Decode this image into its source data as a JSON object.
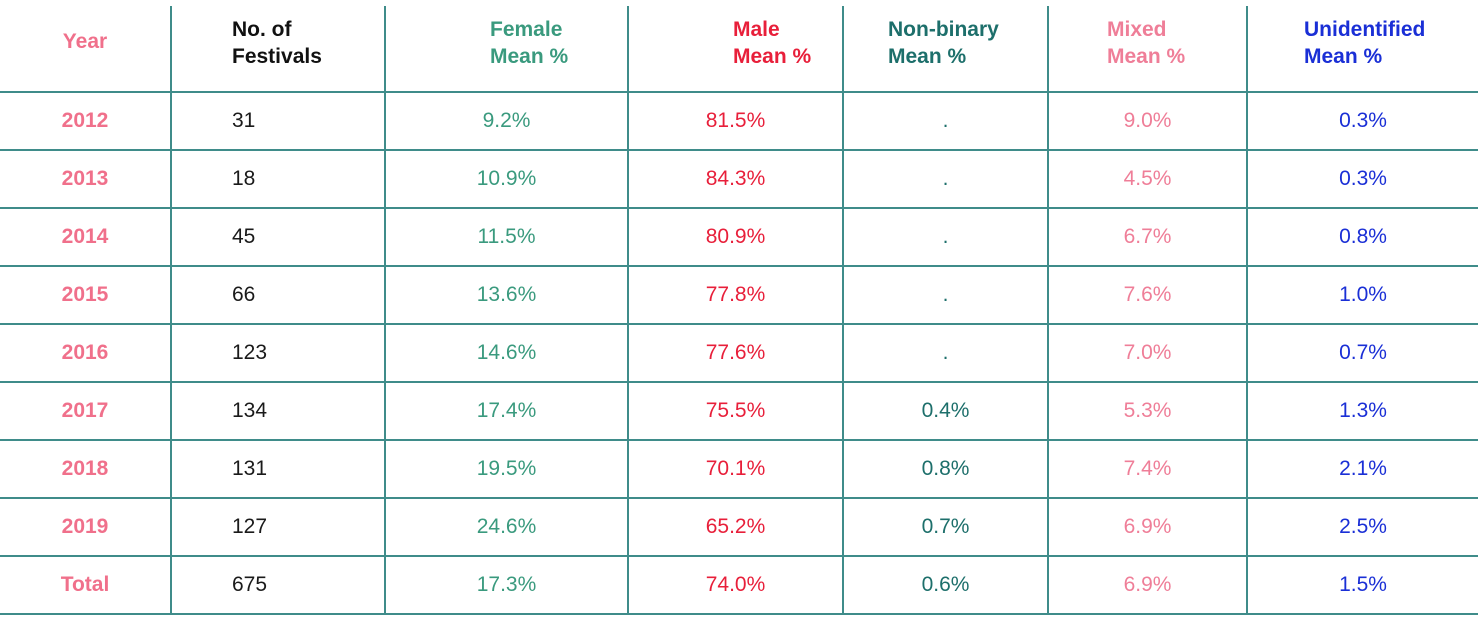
{
  "header": {
    "year": "Year",
    "festivals": [
      "No. of",
      "Festivals"
    ],
    "female": [
      "Female",
      "Mean %"
    ],
    "male": [
      "Male",
      "Mean %"
    ],
    "nonbinary": [
      "Non-binary",
      "Mean %"
    ],
    "mixed": [
      "Mixed",
      "Mean %"
    ],
    "unidentified": [
      "Unidentified",
      "Mean %"
    ]
  },
  "rows": [
    {
      "year": "2012",
      "festivals": "31",
      "female": "9.2%",
      "male": "81.5%",
      "nonbinary": ".",
      "mixed": "9.0%",
      "unidentified": "0.3%"
    },
    {
      "year": "2013",
      "festivals": "18",
      "female": "10.9%",
      "male": "84.3%",
      "nonbinary": ".",
      "mixed": "4.5%",
      "unidentified": "0.3%"
    },
    {
      "year": "2014",
      "festivals": "45",
      "female": "11.5%",
      "male": "80.9%",
      "nonbinary": ".",
      "mixed": "6.7%",
      "unidentified": "0.8%"
    },
    {
      "year": "2015",
      "festivals": "66",
      "female": "13.6%",
      "male": "77.8%",
      "nonbinary": ".",
      "mixed": "7.6%",
      "unidentified": "1.0%"
    },
    {
      "year": "2016",
      "festivals": "123",
      "female": "14.6%",
      "male": "77.6%",
      "nonbinary": ".",
      "mixed": "7.0%",
      "unidentified": "0.7%"
    },
    {
      "year": "2017",
      "festivals": "134",
      "female": "17.4%",
      "male": "75.5%",
      "nonbinary": "0.4%",
      "mixed": "5.3%",
      "unidentified": "1.3%"
    },
    {
      "year": "2018",
      "festivals": "131",
      "female": "19.5%",
      "male": "70.1%",
      "nonbinary": "0.8%",
      "mixed": "7.4%",
      "unidentified": "2.1%"
    },
    {
      "year": "2019",
      "festivals": "127",
      "female": "24.6%",
      "male": "65.2%",
      "nonbinary": "0.7%",
      "mixed": "6.9%",
      "unidentified": "2.5%"
    },
    {
      "year": "Total",
      "festivals": "675",
      "female": "17.3%",
      "male": "74.0%",
      "nonbinary": "0.6%",
      "mixed": "6.9%",
      "unidentified": "1.5%"
    }
  ],
  "colors": {
    "grid": "#3f8c8a",
    "year": "#f0708b",
    "female": "#3a9a7e",
    "male": "#e81f3a",
    "nonbinary": "#1d6f6b",
    "mixed": "#ef7e98",
    "unidentified": "#1a2fd6"
  }
}
